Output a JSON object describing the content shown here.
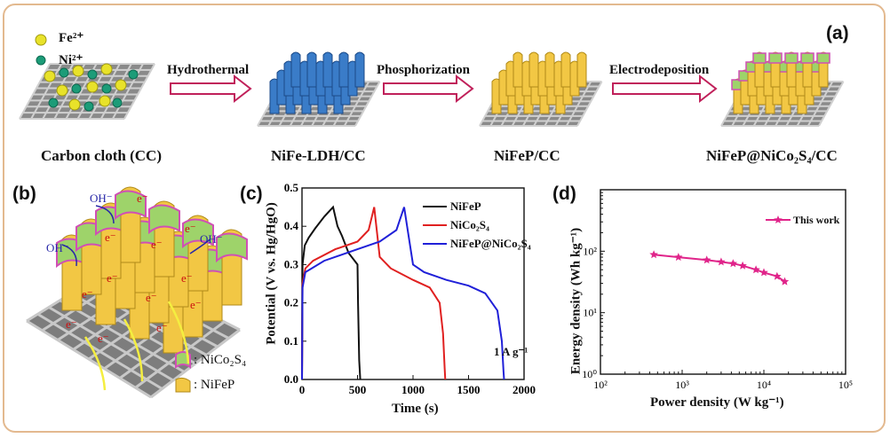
{
  "panel_labels": {
    "a": "(a)",
    "b": "(b)",
    "c": "(c)",
    "d": "(d)"
  },
  "panel_a": {
    "legend": [
      {
        "label": "Fe²⁺",
        "color": "#e8e22a"
      },
      {
        "label": "Ni²⁺",
        "color": "#1c9c78"
      }
    ],
    "steps": [
      "Hydrothermal",
      "Phosphorization",
      "Electrodeposition"
    ],
    "captions": [
      "Carbon cloth (CC)",
      "NiFe-LDH/CC",
      "NiFeP/CC",
      "NiFeP@NiCo₂S₄/CC"
    ]
  },
  "panel_b": {
    "ion_labels": [
      "OH⁻",
      "OH⁻",
      "OH⁻"
    ],
    "electron_label": "e⁻",
    "legend": [
      {
        "label": ": NiCo₂S₄",
        "color": "#9ed36a"
      },
      {
        "label": ": NiFeP",
        "color": "#f2c744"
      }
    ]
  },
  "chart_data": [
    {
      "type": "line",
      "xlabel": "Time (s)",
      "ylabel": "Potential (V vs. Hg/HgO)",
      "xlim": [
        0,
        2000
      ],
      "ylim": [
        0,
        0.5
      ],
      "xticks": [
        0,
        500,
        1000,
        1500,
        2000
      ],
      "yticks": [
        0.0,
        0.1,
        0.2,
        0.3,
        0.4,
        0.5
      ],
      "annotation": "1 A g⁻¹",
      "legend_position": "top-right",
      "series": [
        {
          "name": "NiFeP",
          "color": "#111111",
          "x": [
            0,
            5,
            25,
            60,
            120,
            200,
            280,
            320,
            360,
            420,
            500,
            505,
            515,
            525
          ],
          "y": [
            0,
            0.3,
            0.35,
            0.37,
            0.395,
            0.425,
            0.45,
            0.4,
            0.375,
            0.33,
            0.3,
            0.2,
            0.05,
            0
          ]
        },
        {
          "name": "NiCo₂S₄",
          "color": "#e02020",
          "x": [
            0,
            5,
            30,
            100,
            300,
            500,
            600,
            650,
            700,
            800,
            1000,
            1150,
            1240,
            1270,
            1285,
            1290
          ],
          "y": [
            0,
            0.25,
            0.29,
            0.31,
            0.34,
            0.36,
            0.39,
            0.45,
            0.32,
            0.29,
            0.26,
            0.24,
            0.2,
            0.12,
            0.03,
            0
          ]
        },
        {
          "name": "NiFeP@NiCo₂S₄",
          "color": "#2020d8",
          "x": [
            0,
            5,
            30,
            200,
            500,
            700,
            850,
            920,
            1000,
            1100,
            1300,
            1500,
            1650,
            1760,
            1800,
            1815,
            1820
          ],
          "y": [
            0,
            0.24,
            0.28,
            0.31,
            0.34,
            0.36,
            0.39,
            0.45,
            0.3,
            0.28,
            0.26,
            0.245,
            0.225,
            0.18,
            0.1,
            0.02,
            0
          ]
        }
      ]
    },
    {
      "type": "line",
      "xlabel": "Power density (W kg⁻¹)",
      "ylabel": "Energy density (Wh kg⁻¹)",
      "xscale": "log",
      "yscale": "log",
      "xlim": [
        100,
        100000
      ],
      "ylim": [
        1,
        1000
      ],
      "xticks": [
        "10²",
        "10³",
        "10⁴",
        "10⁵"
      ],
      "yticks": [
        "10⁰",
        "10¹",
        "10²"
      ],
      "legend_position": "top-right",
      "series": [
        {
          "name": "This work",
          "color": "#e0248a",
          "x": [
            450,
            900,
            2000,
            3000,
            4200,
            5500,
            8000,
            10000,
            14500,
            18000
          ],
          "y": [
            88,
            80,
            72,
            67,
            63,
            58,
            50,
            45,
            39,
            32
          ]
        }
      ]
    }
  ]
}
